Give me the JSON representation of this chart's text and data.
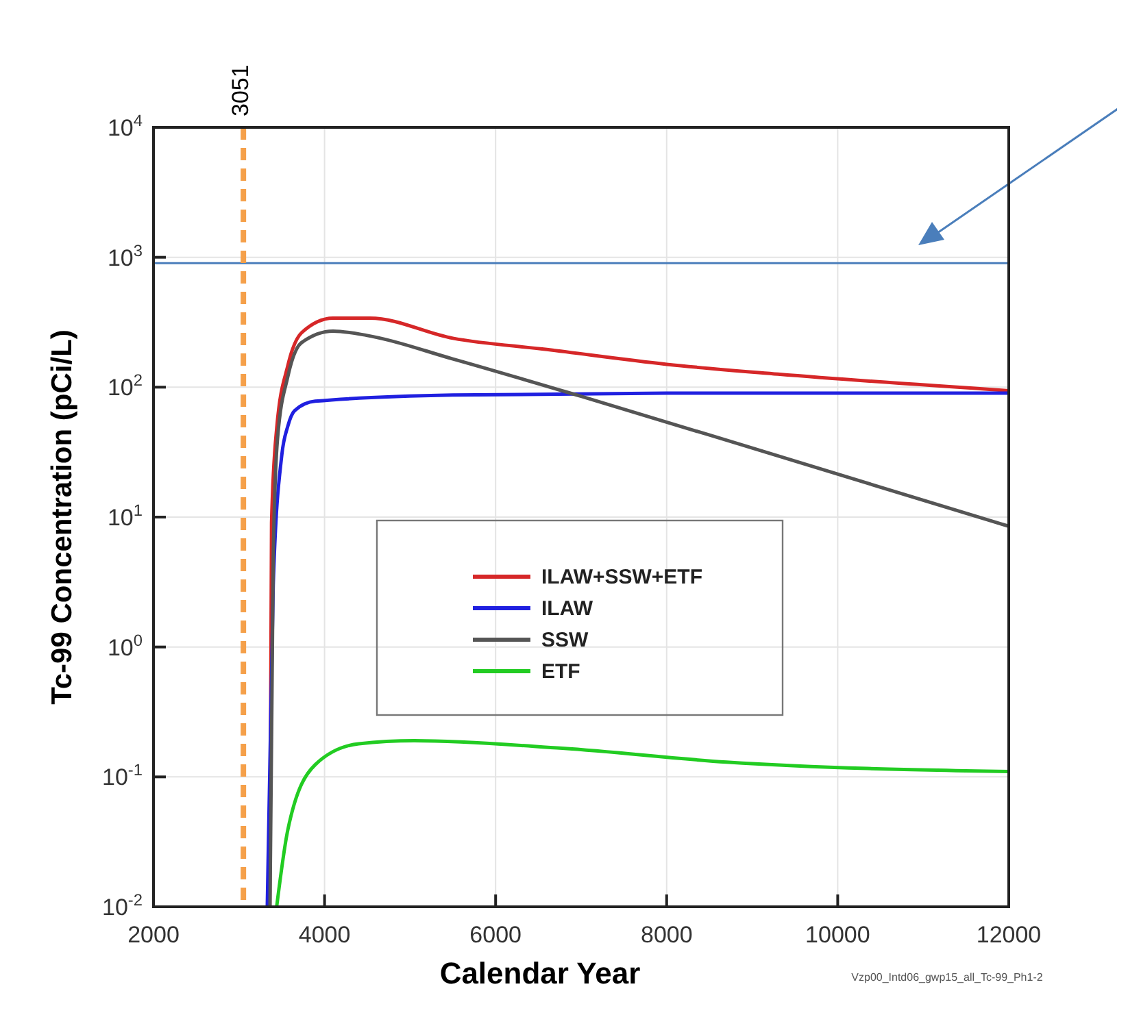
{
  "chart_data": {
    "type": "line",
    "xlabel": "Calendar Year",
    "ylabel": "Tc-99 Concentration (pCi/L)",
    "log": "y",
    "grid": true,
    "legend": "center",
    "line_style": "solid",
    "xlim": [
      2000,
      12000
    ],
    "xticks": [
      2000,
      4000,
      6000,
      8000,
      10000,
      12000
    ],
    "ylim": [
      0.01,
      10000
    ],
    "yticks": [
      {
        "value": 0.01,
        "label": "10$^{-2}$"
      },
      {
        "value": 0.1,
        "label": "10$^{-1}$"
      },
      {
        "value": 1,
        "label": "10$^{0}$"
      },
      {
        "value": 10,
        "label": "10$^{1}$"
      },
      {
        "value": 100,
        "label": "10$^{2}$"
      },
      {
        "value": 1000,
        "label": "10$^{3}$"
      },
      {
        "value": 10000,
        "label": "10$^{4}$"
      }
    ],
    "series": [
      {
        "name": "ILAW+SSW+ETF",
        "color": "#d62728",
        "x": [
          3360,
          3380,
          3440,
          3570,
          3730,
          4100,
          4530,
          5500,
          6600,
          8000,
          9300,
          12000
        ],
        "values": [
          0.01,
          9,
          48,
          146,
          262,
          340,
          340,
          238,
          195,
          150,
          126,
          94
        ]
      },
      {
        "name": "ILAW",
        "color": "#2020e0",
        "x": [
          3330,
          3400,
          3500,
          3570,
          3650,
          3890,
          5500,
          8000,
          12000
        ],
        "values": [
          0.01,
          3,
          30,
          50,
          66,
          78,
          87,
          90,
          90
        ]
      },
      {
        "name": "SSW",
        "color": "#555555",
        "x": [
          3362,
          3400,
          3450,
          3570,
          3730,
          4100,
          4500,
          5500,
          7000,
          9000,
          12000
        ],
        "values": [
          0.01,
          5,
          40,
          120,
          220,
          270,
          250,
          165,
          85,
          34,
          8.5
        ]
      },
      {
        "name": "ETF",
        "color": "#22cc22",
        "x": [
          3440,
          3570,
          3890,
          4400,
          5050,
          6780,
          8700,
          12000
        ],
        "values": [
          0.01,
          0.039,
          0.124,
          0.18,
          0.19,
          0.166,
          0.13,
          0.11
        ]
      }
    ],
    "ref_lines": [
      {
        "axis": "y",
        "value": 900,
        "color": "#4a7ebb",
        "line_style": "solid"
      },
      {
        "axis": "x",
        "value": 3051,
        "label": "3051",
        "color": "#f5a04a",
        "line_style": "dashed"
      }
    ],
    "annotations": [
      "Vzp00_Intd06_gwp15_all_Tc-99_Ph1-2"
    ]
  }
}
